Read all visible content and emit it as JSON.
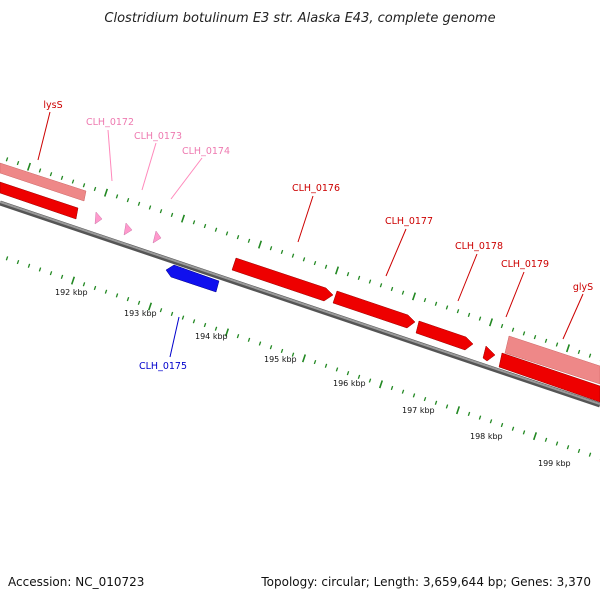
{
  "title": "Clostridium botulinum E3 str. Alaska E43, complete genome",
  "footer": {
    "accession": "Accession: NC_010723",
    "summary": "Topology: circular; Length: 3,659,644 bp; Genes: 3,370"
  },
  "colors": {
    "forward_gene": "#ff0000",
    "forward_gene_light": "#ee8888",
    "reverse_gene": "#0000ff",
    "pseudo_gene": "#ffaacc",
    "tick": "#228822",
    "backbone": "#888888"
  },
  "scale_labels": [
    "192 kbp",
    "193 kbp",
    "194 kbp",
    "195 kbp",
    "196 kbp",
    "197 kbp",
    "198 kbp",
    "199 kbp"
  ],
  "genes": [
    {
      "label": "lysS",
      "strand": "forward",
      "style": "rna"
    },
    {
      "label": "CLH_0172",
      "strand": "forward",
      "style": "pseudo"
    },
    {
      "label": "CLH_0173",
      "strand": "forward",
      "style": "pseudo"
    },
    {
      "label": "CLH_0174",
      "strand": "forward",
      "style": "pseudo"
    },
    {
      "label": "CLH_0175",
      "strand": "reverse",
      "style": "cds"
    },
    {
      "label": "CLH_0176",
      "strand": "forward",
      "style": "cds"
    },
    {
      "label": "CLH_0177",
      "strand": "forward",
      "style": "cds"
    },
    {
      "label": "CLH_0178",
      "strand": "forward",
      "style": "cds"
    },
    {
      "label": "CLH_0179",
      "strand": "forward",
      "style": "cds"
    },
    {
      "label": "glyS",
      "strand": "forward",
      "style": "rna"
    }
  ]
}
